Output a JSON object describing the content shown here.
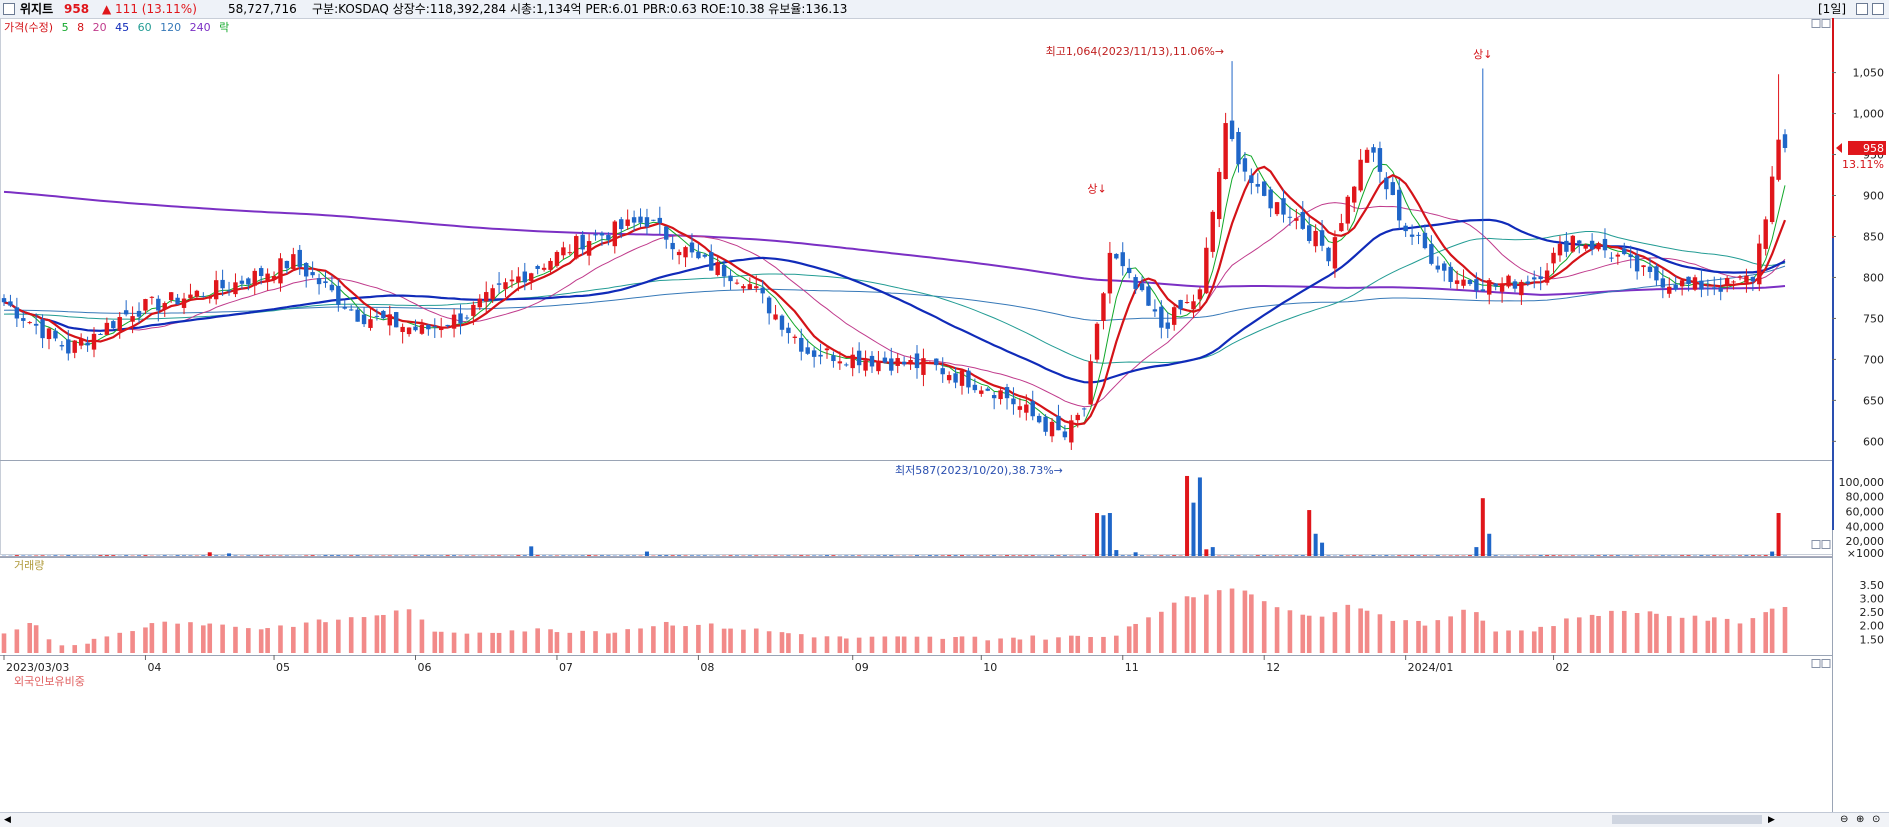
{
  "header": {
    "stock_name": "위지트",
    "price": "958",
    "change": "▲ 111 (13.11%)",
    "volume": "58,727,716",
    "info": "구분:KOSDAQ 상장수:118,392,284 시총:1,134억 PER:6.01 PBR:0.63 ROE:10.38 유보율:136.13",
    "period": "[1일]"
  },
  "price_legend": [
    "가격(수정)",
    "5",
    "8",
    "20",
    "45",
    "60",
    "120",
    "240",
    "락"
  ],
  "volume_legend": "거래량",
  "foreign_legend": "외국인보유비중",
  "colors": {
    "up": "#e0161b",
    "down": "#1f66c8",
    "ma5": "#12a82a",
    "ma8": "#d41318",
    "ma20": "#c03b8c",
    "ma45": "#102bb9",
    "ma60": "#239c94",
    "ma120": "#3779b8",
    "ma240": "#7b30c4",
    "foreign_bar": "#f28a89"
  },
  "annotations": {
    "high": "최고1,064(2023/11/13),11.06%→",
    "low": "최저587(2023/10/20),38.73%→",
    "upper_limit_1": "상↓",
    "upper_limit_2": "상↓"
  },
  "price_badge": {
    "value": "958",
    "pct": "13.11%"
  },
  "chart_data": [
    {
      "type": "line",
      "title": "가격(수정)",
      "x_tick_labels": [
        "2023/03/03",
        "04",
        "05",
        "06",
        "07",
        "08",
        "09",
        "10",
        "11",
        "12",
        "2024/01",
        "02"
      ],
      "y_ticks": [
        "1,050",
        "1,000",
        "950",
        "900",
        "850",
        "800",
        "750",
        "700",
        "650",
        "600"
      ],
      "ylim": [
        587,
        1080
      ],
      "close_anchors": [
        {
          "i": 0,
          "v": 770
        },
        {
          "i": 10,
          "v": 712
        },
        {
          "i": 20,
          "v": 760
        },
        {
          "i": 35,
          "v": 790
        },
        {
          "i": 45,
          "v": 820
        },
        {
          "i": 55,
          "v": 755
        },
        {
          "i": 65,
          "v": 735
        },
        {
          "i": 72,
          "v": 755
        },
        {
          "i": 80,
          "v": 800
        },
        {
          "i": 90,
          "v": 845
        },
        {
          "i": 100,
          "v": 870
        },
        {
          "i": 108,
          "v": 820
        },
        {
          "i": 115,
          "v": 800
        },
        {
          "i": 125,
          "v": 710
        },
        {
          "i": 135,
          "v": 700
        },
        {
          "i": 145,
          "v": 690
        },
        {
          "i": 155,
          "v": 660
        },
        {
          "i": 160,
          "v": 630
        },
        {
          "i": 165,
          "v": 605
        },
        {
          "i": 168,
          "v": 640
        },
        {
          "i": 172,
          "v": 830
        },
        {
          "i": 180,
          "v": 740
        },
        {
          "i": 186,
          "v": 780
        },
        {
          "i": 190,
          "v": 980
        },
        {
          "i": 195,
          "v": 900
        },
        {
          "i": 200,
          "v": 880
        },
        {
          "i": 206,
          "v": 830
        },
        {
          "i": 212,
          "v": 960
        },
        {
          "i": 218,
          "v": 860
        },
        {
          "i": 225,
          "v": 800
        },
        {
          "i": 232,
          "v": 790
        },
        {
          "i": 238,
          "v": 800
        },
        {
          "i": 244,
          "v": 850
        },
        {
          "i": 250,
          "v": 830
        },
        {
          "i": 256,
          "v": 800
        },
        {
          "i": 262,
          "v": 790
        },
        {
          "i": 268,
          "v": 790
        },
        {
          "i": 272,
          "v": 800
        },
        {
          "i": 276,
          "v": 958
        }
      ],
      "spikes": [
        {
          "i": 191,
          "high": 1064
        },
        {
          "i": 230,
          "high": 1055
        },
        {
          "i": 276,
          "high": 1048
        }
      ]
    },
    {
      "type": "bar",
      "title": "거래량",
      "y_ticks": [
        "100,000",
        "80,000",
        "60,000",
        "40,000",
        "20,000",
        "×1000"
      ],
      "ylim": [
        0,
        112000
      ],
      "base_volume": 600,
      "spikes": [
        {
          "i": 32,
          "v": 5000,
          "up": true
        },
        {
          "i": 35,
          "v": 3500,
          "up": false
        },
        {
          "i": 82,
          "v": 13000,
          "up": false
        },
        {
          "i": 100,
          "v": 6000,
          "up": false
        },
        {
          "i": 170,
          "v": 58000,
          "up": true
        },
        {
          "i": 171,
          "v": 55000,
          "up": false
        },
        {
          "i": 172,
          "v": 58000,
          "up": false
        },
        {
          "i": 173,
          "v": 8000,
          "up": false
        },
        {
          "i": 176,
          "v": 5000,
          "up": false
        },
        {
          "i": 184,
          "v": 108000,
          "up": true
        },
        {
          "i": 185,
          "v": 72000,
          "up": false
        },
        {
          "i": 186,
          "v": 106000,
          "up": false
        },
        {
          "i": 187,
          "v": 9000,
          "up": true
        },
        {
          "i": 188,
          "v": 12000,
          "up": false
        },
        {
          "i": 203,
          "v": 62000,
          "up": true
        },
        {
          "i": 204,
          "v": 30000,
          "up": false
        },
        {
          "i": 205,
          "v": 18000,
          "up": false
        },
        {
          "i": 230,
          "v": 78000,
          "up": true
        },
        {
          "i": 231,
          "v": 30000,
          "up": false
        },
        {
          "i": 229,
          "v": 12000,
          "up": false
        },
        {
          "i": 276,
          "v": 58000,
          "up": true
        },
        {
          "i": 275,
          "v": 6000,
          "up": false
        }
      ]
    },
    {
      "type": "bar",
      "title": "외국인보유비중",
      "y_ticks": [
        "3.50",
        "3.00",
        "2.50",
        "2.00",
        "1.50"
      ],
      "ylim": [
        1.0,
        3.75
      ],
      "anchors": [
        {
          "i": 0,
          "v": 1.8
        },
        {
          "i": 5,
          "v": 2.1
        },
        {
          "i": 8,
          "v": 1.25
        },
        {
          "i": 15,
          "v": 1.5
        },
        {
          "i": 25,
          "v": 2.2
        },
        {
          "i": 40,
          "v": 1.9
        },
        {
          "i": 55,
          "v": 2.3
        },
        {
          "i": 64,
          "v": 2.6
        },
        {
          "i": 67,
          "v": 1.7
        },
        {
          "i": 80,
          "v": 1.85
        },
        {
          "i": 95,
          "v": 1.8
        },
        {
          "i": 103,
          "v": 2.1
        },
        {
          "i": 110,
          "v": 2.0
        },
        {
          "i": 130,
          "v": 1.55
        },
        {
          "i": 155,
          "v": 1.55
        },
        {
          "i": 172,
          "v": 1.6
        },
        {
          "i": 180,
          "v": 2.6
        },
        {
          "i": 184,
          "v": 3.0
        },
        {
          "i": 192,
          "v": 3.5
        },
        {
          "i": 198,
          "v": 2.6
        },
        {
          "i": 205,
          "v": 2.4
        },
        {
          "i": 210,
          "v": 2.8
        },
        {
          "i": 215,
          "v": 2.3
        },
        {
          "i": 222,
          "v": 2.0
        },
        {
          "i": 228,
          "v": 2.75
        },
        {
          "i": 232,
          "v": 1.8
        },
        {
          "i": 238,
          "v": 1.85
        },
        {
          "i": 246,
          "v": 2.4
        },
        {
          "i": 254,
          "v": 2.55
        },
        {
          "i": 262,
          "v": 2.3
        },
        {
          "i": 270,
          "v": 2.15
        },
        {
          "i": 276,
          "v": 2.7
        }
      ]
    }
  ]
}
